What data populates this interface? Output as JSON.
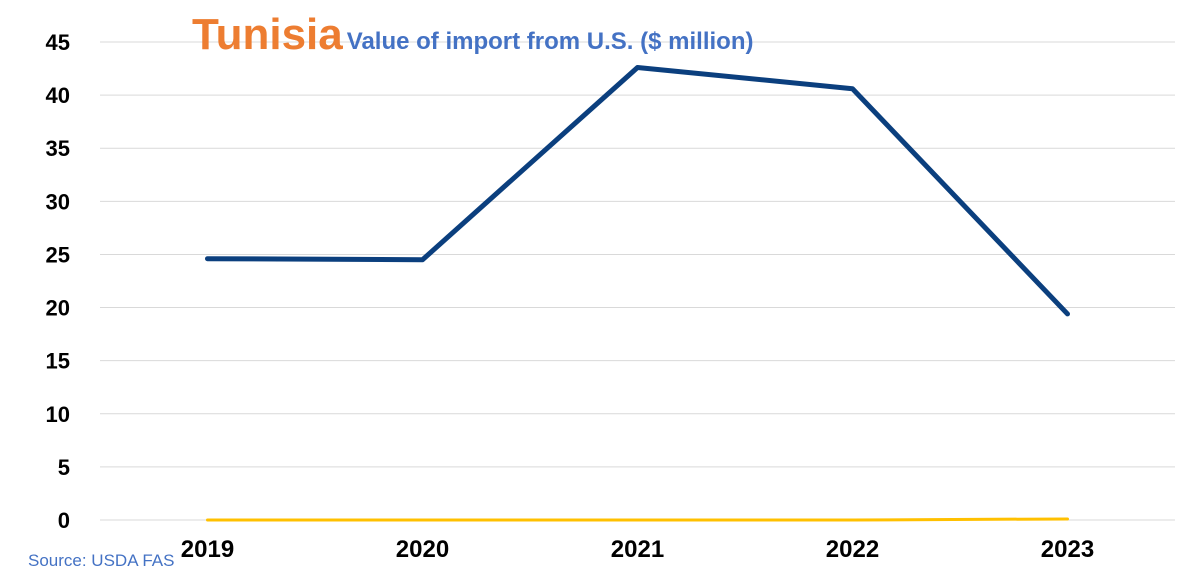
{
  "title": "Tunisia",
  "subtitle": "Value of import from U.S. ($ million)",
  "source": "Source: USDA FAS",
  "colors": {
    "title": "#ED7D31",
    "subtitle": "#4472C4",
    "series_main": "#0B3F7E",
    "series_baseline": "#FFC000",
    "grid": "#D9D9D9"
  },
  "chart_data": {
    "type": "line",
    "title": "Tunisia",
    "subtitle": "Value of import from U.S. ($ million)",
    "xlabel": "",
    "ylabel": "",
    "categories": [
      "2019",
      "2020",
      "2021",
      "2022",
      "2023"
    ],
    "ylim": [
      0,
      45
    ],
    "yticks": [
      0,
      5,
      10,
      15,
      20,
      25,
      30,
      35,
      40,
      45
    ],
    "grid": true,
    "legend": "none",
    "series": [
      {
        "values": [
          24.6,
          24.5,
          42.6,
          40.6,
          19.4
        ],
        "color": "#0B3F7E"
      },
      {
        "values": [
          0,
          0,
          0,
          0,
          0.1
        ],
        "color": "#FFC000"
      }
    ]
  }
}
